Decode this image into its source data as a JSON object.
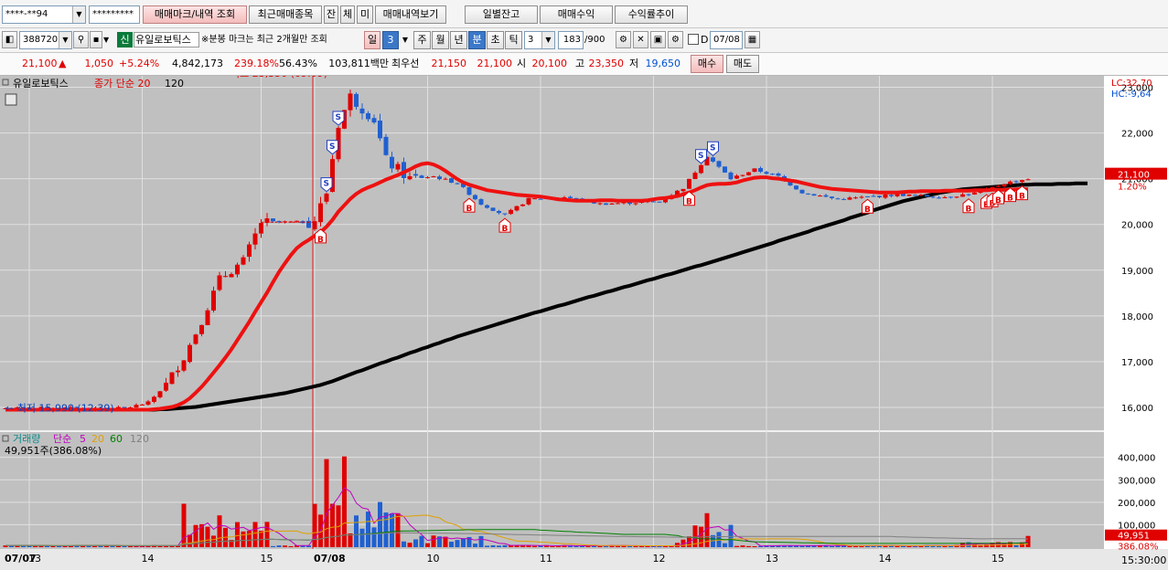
{
  "toolbar": {
    "account": "****-**94",
    "password": "*********",
    "tabs": [
      "매매마크/내역 조회",
      "최근매매종목",
      "잔",
      "체",
      "미",
      "매매내역보기"
    ],
    "right_buttons": [
      "일별잔고",
      "매매수익",
      "수익률추이"
    ]
  },
  "controls": {
    "code": "388720",
    "credit_badge": "신",
    "stock_name": "유일로보틱스",
    "note": "※분봉 마크는 최근 2개월만 조회",
    "period_sel": "일",
    "period_num": "3",
    "periods": [
      "주",
      "월",
      "년",
      "분",
      "초",
      "틱"
    ],
    "active_period": "분",
    "minute_val": "3",
    "count": "183",
    "count_total": "/900",
    "d_label": "D",
    "date": "07/08"
  },
  "quote": {
    "price": "21,100",
    "arrow": "▲",
    "change": "1,050",
    "rate": "+5.24%",
    "volume": "4,842,173",
    "vol_ratio": "239.18%",
    "pct": "56.43%",
    "amount": "103,811백만",
    "best_label": "최우선",
    "ask": "21,150",
    "bid": "21,100",
    "open_label": "시",
    "open": "20,100",
    "high_label": "고",
    "high": "23,350",
    "low_label": "저",
    "low": "19,650",
    "buy": "매수",
    "sell": "매도"
  },
  "colors": {
    "up": "#e00000",
    "down": "#2060d0",
    "ma20": "#ee1111",
    "ma120": "#000000",
    "panel_bg": "#c0c0c0"
  },
  "chart_data": {
    "type": "candlestick",
    "legend": {
      "name": "유일로보틱스",
      "ma_label": "종가 단순 20",
      "ma120": "120"
    },
    "hilo": {
      "lc": "LC:32,70",
      "hc": "HC:-9,64"
    },
    "annotations": {
      "high": "최고 23,350 (09:09)",
      "low": "최저 15,990 (12:39)"
    },
    "price_axis": {
      "min": 15500,
      "max": 23250,
      "ticks": [
        "23,000",
        "22,000",
        "21,000",
        "20,000",
        "19,000",
        "18,000",
        "17,000",
        "16,000"
      ],
      "tick_values": [
        23000,
        22000,
        21000,
        20000,
        19000,
        18000,
        17000,
        16000
      ]
    },
    "last_price": {
      "label": "21,100",
      "value": 21100,
      "pct": "1.20%"
    },
    "volume_legend": {
      "name": "거래량",
      "ma": "단순",
      "periods": [
        "5",
        "20",
        "60",
        "120"
      ],
      "current": "49,951주(386.08%)"
    },
    "volume_axis": {
      "max": 480000,
      "ticks": [
        "400,000",
        "300,000",
        "200,000",
        "100,000"
      ],
      "tick_values": [
        400000,
        300000,
        200000,
        100000
      ]
    },
    "last_volume": {
      "label": "49,951",
      "pct": "386.08%",
      "value": 49951
    },
    "x_labels": [
      {
        "i": 0,
        "t": "07/07"
      },
      {
        "i": 4,
        "t": "13"
      },
      {
        "i": 23,
        "t": "14"
      },
      {
        "i": 43,
        "t": "15"
      },
      {
        "i": 52,
        "t": "07/08"
      },
      {
        "i": 71,
        "t": "10"
      },
      {
        "i": 90,
        "t": "11"
      },
      {
        "i": 109,
        "t": "12"
      },
      {
        "i": 128,
        "t": "13"
      },
      {
        "i": 147,
        "t": "14"
      },
      {
        "i": 166,
        "t": "15"
      }
    ],
    "time_label": "15:30:00",
    "period_sep_index": 52,
    "sell_marks": [
      54,
      55,
      56,
      117,
      119
    ],
    "buy_marks": [
      53,
      78,
      84,
      115,
      145,
      162,
      165,
      166,
      167,
      169,
      171
    ],
    "ma20": [
      15950,
      15950,
      15950,
      15950,
      15950,
      15950,
      15950,
      15950,
      15950,
      15950,
      15950,
      15950,
      15950,
      15950,
      15950,
      15950,
      15950,
      15950,
      15950,
      15950,
      15950,
      15950,
      15950,
      15950,
      15950,
      15960,
      15970,
      15990,
      16010,
      16050,
      16110,
      16200,
      16320,
      16450,
      16600,
      16760,
      16920,
      17090,
      17270,
      17470,
      17670,
      17870,
      18090,
      18300,
      18510,
      18740,
      18960,
      19150,
      19330,
      19480,
      19580,
      19660,
      19750,
      19830,
      19950,
      20100,
      20280,
      20420,
      20560,
      20670,
      20750,
      20810,
      20860,
      20920,
      20980,
      21030,
      21080,
      21140,
      21200,
      21270,
      21320,
      21340,
      21310,
      21250,
      21170,
      21080,
      20990,
      20920,
      20870,
      20830,
      20790,
      20750,
      20730,
      20710,
      20690,
      20670,
      20650,
      20640,
      20630,
      20620,
      20610,
      20590,
      20570,
      20550,
      20540,
      20530,
      20520,
      20520,
      20520,
      20520,
      20530,
      20530,
      20530,
      20520,
      20520,
      20520,
      20520,
      20520,
      20530,
      20550,
      20570,
      20580,
      20600,
      20620,
      20660,
      20700,
      20750,
      20810,
      20860,
      20880,
      20890,
      20890,
      20900,
      20920,
      20960,
      20990,
      21020,
      21030,
      21030,
      21010,
      21000,
      20980,
      20960,
      20940,
      20910,
      20880,
      20850,
      20820,
      20800,
      20780,
      20770,
      20760,
      20750,
      20740,
      20730,
      20720,
      20710,
      20700,
      20700,
      20700,
      20700,
      20710,
      20720,
      20720,
      20730,
      20730,
      20730,
      20730,
      20740,
      20740,
      20740,
      20740,
      20740,
      20750,
      20750,
      20750,
      20760,
      20760,
      20760,
      20760,
      20770,
      20770,
      20770
    ],
    "ma120": [
      15950,
      15950,
      15950,
      15950,
      15950,
      15950,
      15950,
      15950,
      15950,
      15950,
      15950,
      15950,
      15950,
      15950,
      15950,
      15950,
      15950,
      15950,
      15950,
      15950,
      15950,
      15950,
      15950,
      15950,
      15950,
      15950,
      15960,
      15960,
      15970,
      15980,
      15990,
      16000,
      16010,
      16030,
      16050,
      16070,
      16090,
      16110,
      16130,
      16150,
      16170,
      16190,
      16210,
      16230,
      16250,
      16270,
      16290,
      16310,
      16340,
      16370,
      16400,
      16430,
      16460,
      16490,
      16530,
      16570,
      16620,
      16670,
      16720,
      16770,
      16810,
      16860,
      16910,
      16960,
      17000,
      17050,
      17090,
      17140,
      17190,
      17230,
      17280,
      17320,
      17370,
      17410,
      17460,
      17500,
      17550,
      17590,
      17630,
      17670,
      17710,
      17750,
      17790,
      17830,
      17870,
      17910,
      17950,
      17990,
      18030,
      18070,
      18100,
      18140,
      18180,
      18220,
      18250,
      18290,
      18330,
      18370,
      18410,
      18440,
      18480,
      18520,
      18550,
      18590,
      18630,
      18660,
      18700,
      18740,
      18780,
      18810,
      18850,
      18890,
      18920,
      18960,
      19000,
      19040,
      19080,
      19110,
      19150,
      19190,
      19230,
      19270,
      19310,
      19350,
      19390,
      19430,
      19470,
      19510,
      19550,
      19590,
      19640,
      19680,
      19720,
      19760,
      19800,
      19840,
      19890,
      19930,
      19970,
      20010,
      20050,
      20090,
      20140,
      20180,
      20220,
      20260,
      20310,
      20350,
      20390,
      20430,
      20470,
      20510,
      20540,
      20570,
      20600,
      20630,
      20660,
      20690,
      20710,
      20730,
      20750,
      20770,
      20780,
      20790,
      20800,
      20810,
      20820,
      20830,
      20840,
      20850,
      20860,
      20870,
      20870,
      20880,
      20880,
      20880,
      20880,
      20890,
      20890,
      20890,
      20900,
      20900,
      20900
    ]
  }
}
